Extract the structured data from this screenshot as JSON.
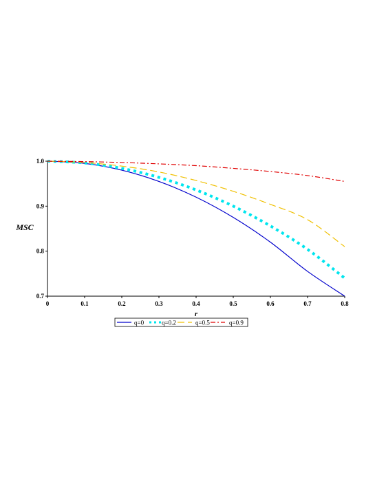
{
  "chart_data": {
    "type": "line",
    "title": "",
    "xlabel": "r",
    "ylabel": "MSC",
    "xlim": [
      0,
      0.8
    ],
    "ylim": [
      0.7,
      1.0
    ],
    "x_ticks": [
      "0",
      "0.1",
      "0.2",
      "0.3",
      "0.4",
      "0.5",
      "0.6",
      "0.7",
      "0.8"
    ],
    "y_ticks": [
      "0.7",
      "0.8",
      "0.9",
      "1.0"
    ],
    "grid": false,
    "legend_position": "bottom-center",
    "x": [
      0,
      0.1,
      0.2,
      0.3,
      0.4,
      0.5,
      0.6,
      0.7,
      0.8
    ],
    "series": [
      {
        "name": "q=0",
        "color": "#0000cc",
        "dash": "solid",
        "values": [
          1.0,
          0.995,
          0.98,
          0.955,
          0.92,
          0.875,
          0.82,
          0.755,
          0.7
        ]
      },
      {
        "name": "q=0.2",
        "color": "#00e5ee",
        "dash": "dotted",
        "values": [
          1.0,
          0.996,
          0.984,
          0.964,
          0.936,
          0.9,
          0.856,
          0.804,
          0.74
        ]
      },
      {
        "name": "q=0.5",
        "color": "#f0c000",
        "dash": "dashed",
        "values": [
          1.0,
          0.997,
          0.989,
          0.976,
          0.957,
          0.933,
          0.904,
          0.87,
          0.81
        ]
      },
      {
        "name": "q=0.9",
        "color": "#e00000",
        "dash": "dashdot",
        "values": [
          1.0,
          0.999,
          0.997,
          0.994,
          0.99,
          0.984,
          0.977,
          0.968,
          0.955
        ]
      }
    ]
  }
}
